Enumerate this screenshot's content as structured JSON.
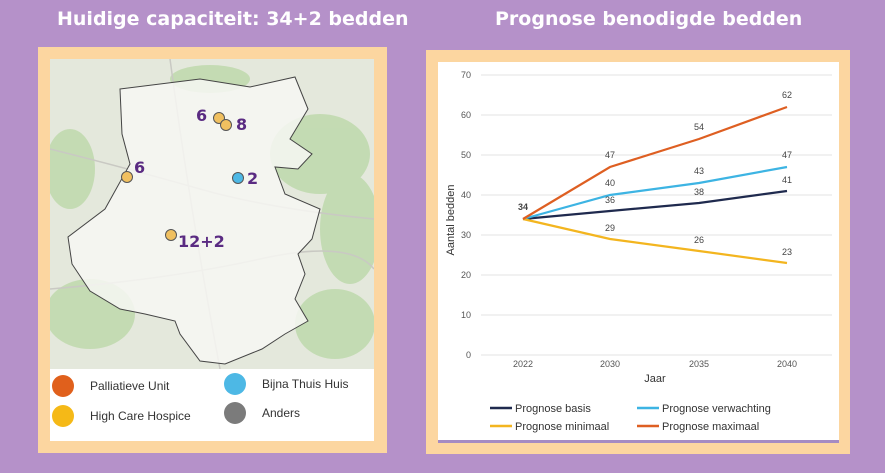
{
  "left_panel": {
    "title": "Huidige capaciteit: 34+2 bedden",
    "map": {
      "locations": [
        {
          "label": "6",
          "type": "high-care-hospice"
        },
        {
          "label": "8",
          "type": "high-care-hospice"
        },
        {
          "label": "6",
          "type": "high-care-hospice"
        },
        {
          "label": "2",
          "type": "bijna-thuis-huis"
        },
        {
          "label": "12+2",
          "type": "high-care-hospice"
        }
      ]
    },
    "legend": [
      {
        "label": "Palliatieve Unit",
        "color": "#e0601c"
      },
      {
        "label": "Bijna Thuis Huis",
        "color": "#4db8e5"
      },
      {
        "label": "High Care Hospice",
        "color": "#f5b917"
      },
      {
        "label": "Anders",
        "color": "#7b7b7b"
      }
    ]
  },
  "right_panel": {
    "title": "Prognose benodigde bedden"
  },
  "chart_data": {
    "type": "line",
    "title": "Prognose benodigde bedden",
    "xlabel": "Jaar",
    "ylabel": "Aantal bedden",
    "x": [
      "2022",
      "2030",
      "2035",
      "2040"
    ],
    "ylim": [
      0,
      70
    ],
    "yticks": [
      0,
      10,
      20,
      30,
      40,
      50,
      60,
      70
    ],
    "grid": true,
    "legend_position": "bottom",
    "series": [
      {
        "name": "Prognose basis",
        "color": "#1f2a4e",
        "values": [
          34,
          36,
          38,
          41
        ],
        "labels": [
          "34",
          "36",
          "38",
          "41"
        ]
      },
      {
        "name": "Prognose verwachting",
        "color": "#3db4e3",
        "values": [
          34,
          40,
          43,
          47
        ],
        "labels": [
          "",
          "40",
          "43",
          "47"
        ]
      },
      {
        "name": "Prognose minimaal",
        "color": "#f3b51f",
        "values": [
          34,
          29,
          26,
          23
        ],
        "labels": [
          "",
          "29",
          "26",
          "23"
        ]
      },
      {
        "name": "Prognose maximaal",
        "color": "#de5f22",
        "values": [
          34,
          47,
          54,
          62
        ],
        "labels": [
          "",
          "47",
          "54",
          "62"
        ]
      }
    ]
  }
}
